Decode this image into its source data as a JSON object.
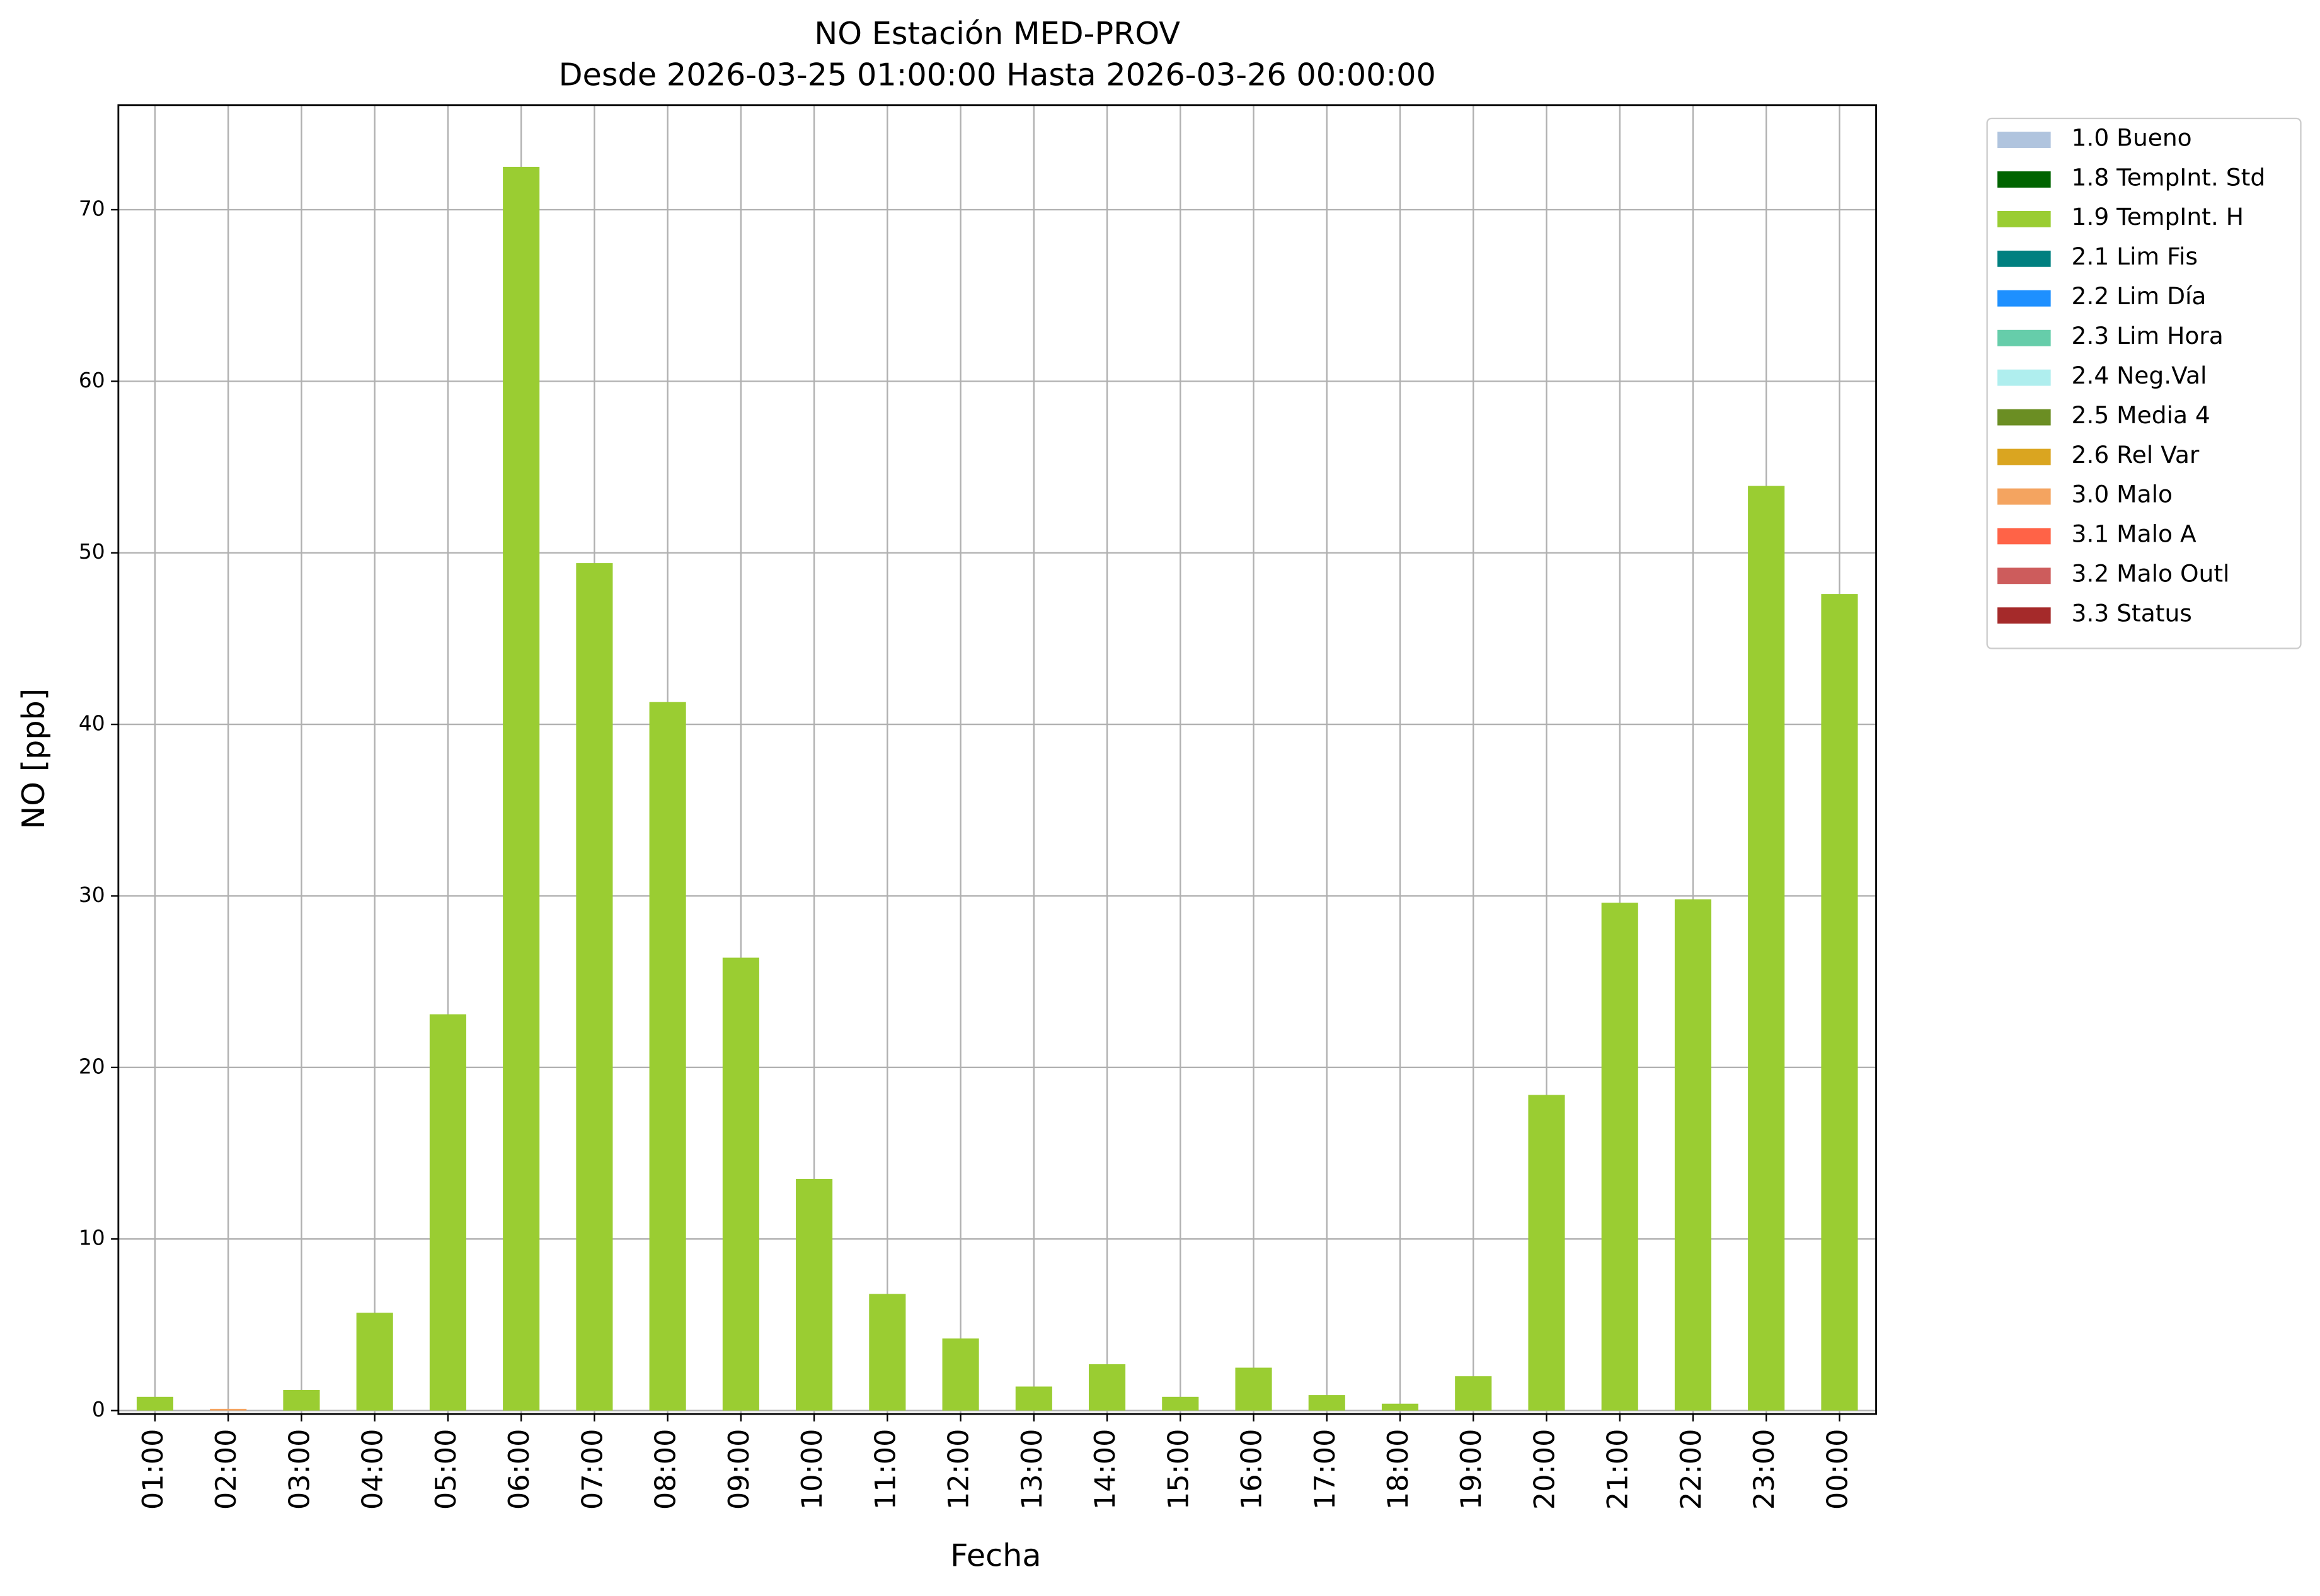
{
  "chart_data": {
    "type": "stacked-bar",
    "title": "NO Estación MED-PROV",
    "subtitle": "Desde 2026-03-25 01:00:00 Hasta 2026-03-26 00:00:00",
    "x_label": "Fecha",
    "y_label": "NO [ppb]",
    "categories": [
      "01:00",
      "02:00",
      "03:00",
      "04:00",
      "05:00",
      "06:00",
      "07:00",
      "08:00",
      "09:00",
      "10:00",
      "11:00",
      "12:00",
      "13:00",
      "14:00",
      "15:00",
      "16:00",
      "17:00",
      "18:00",
      "19:00",
      "20:00",
      "21:00",
      "22:00",
      "23:00",
      "00:00"
    ],
    "series": [
      {
        "name": "1.0 Bueno",
        "color": "#b0c4de",
        "values": [
          null,
          null,
          null,
          null,
          null,
          null,
          null,
          null,
          null,
          null,
          null,
          null,
          null,
          null,
          null,
          null,
          null,
          null,
          null,
          null,
          null,
          null,
          null,
          null
        ]
      },
      {
        "name": "1.8 TempInt. Std",
        "color": "#006400",
        "values": [
          null,
          null,
          null,
          null,
          null,
          null,
          null,
          null,
          null,
          null,
          null,
          null,
          null,
          null,
          null,
          null,
          null,
          null,
          null,
          null,
          null,
          null,
          null,
          null
        ]
      },
      {
        "name": "1.9 TempInt. H",
        "color": "#9acd32",
        "values": [
          0.8,
          null,
          1.2,
          5.7,
          23.1,
          72.5,
          49.4,
          41.3,
          26.4,
          13.5,
          6.8,
          4.2,
          1.4,
          2.7,
          0.8,
          2.5,
          0.9,
          0.4,
          2.0,
          18.4,
          29.6,
          29.8,
          53.9,
          47.6
        ]
      },
      {
        "name": "2.1 Lim Fis",
        "color": "#008080",
        "values": [
          null,
          null,
          null,
          null,
          null,
          null,
          null,
          null,
          null,
          null,
          null,
          null,
          null,
          null,
          null,
          null,
          null,
          null,
          null,
          null,
          null,
          null,
          null,
          null
        ]
      },
      {
        "name": "2.2 Lim Día",
        "color": "#1e90ff",
        "values": [
          null,
          null,
          null,
          null,
          null,
          null,
          null,
          null,
          null,
          null,
          null,
          null,
          null,
          null,
          null,
          null,
          null,
          null,
          null,
          null,
          null,
          null,
          null,
          null
        ]
      },
      {
        "name": "2.3 Lim Hora",
        "color": "#66cdaa",
        "values": [
          null,
          null,
          null,
          null,
          null,
          null,
          null,
          null,
          null,
          null,
          null,
          null,
          null,
          null,
          null,
          null,
          null,
          null,
          null,
          null,
          null,
          null,
          null,
          null
        ]
      },
      {
        "name": "2.4 Neg.Val",
        "color": "#afeeee",
        "values": [
          null,
          null,
          null,
          null,
          null,
          null,
          null,
          null,
          null,
          null,
          null,
          null,
          null,
          null,
          null,
          null,
          null,
          null,
          null,
          null,
          null,
          null,
          null,
          null
        ]
      },
      {
        "name": "2.5 Media 4",
        "color": "#6b8e23",
        "values": [
          null,
          null,
          null,
          null,
          null,
          null,
          null,
          null,
          null,
          null,
          null,
          null,
          null,
          null,
          null,
          null,
          null,
          null,
          null,
          null,
          null,
          null,
          null,
          null
        ]
      },
      {
        "name": "2.6 Rel Var",
        "color": "#daa520",
        "values": [
          null,
          null,
          null,
          null,
          null,
          null,
          null,
          null,
          null,
          null,
          null,
          null,
          null,
          null,
          null,
          null,
          null,
          null,
          null,
          null,
          null,
          null,
          null,
          null
        ]
      },
      {
        "name": "3.0 Malo",
        "color": "#f4a460",
        "values": [
          null,
          0.1,
          null,
          null,
          null,
          null,
          null,
          null,
          null,
          null,
          null,
          null,
          null,
          null,
          null,
          null,
          null,
          null,
          null,
          null,
          null,
          null,
          null,
          null
        ]
      },
      {
        "name": "3.1 Malo A",
        "color": "#ff6347",
        "values": [
          null,
          null,
          null,
          null,
          null,
          null,
          null,
          null,
          null,
          null,
          null,
          null,
          null,
          null,
          null,
          null,
          null,
          null,
          null,
          null,
          null,
          null,
          null,
          null
        ]
      },
      {
        "name": "3.2 Malo Outl",
        "color": "#cd5c5c",
        "values": [
          null,
          null,
          null,
          null,
          null,
          null,
          null,
          null,
          null,
          null,
          null,
          null,
          null,
          null,
          null,
          null,
          null,
          null,
          null,
          null,
          null,
          null,
          null,
          null
        ]
      },
      {
        "name": "3.3 Status",
        "color": "#a52a2a",
        "values": [
          null,
          null,
          null,
          null,
          null,
          null,
          null,
          null,
          null,
          null,
          null,
          null,
          null,
          null,
          null,
          null,
          null,
          null,
          null,
          null,
          null,
          null,
          null,
          null
        ]
      }
    ],
    "ylim": [
      -0.2,
      76.1
    ],
    "yticks": [
      0,
      10,
      20,
      30,
      40,
      50,
      60,
      70
    ],
    "grid": true,
    "legend": "outside-upper-right"
  }
}
